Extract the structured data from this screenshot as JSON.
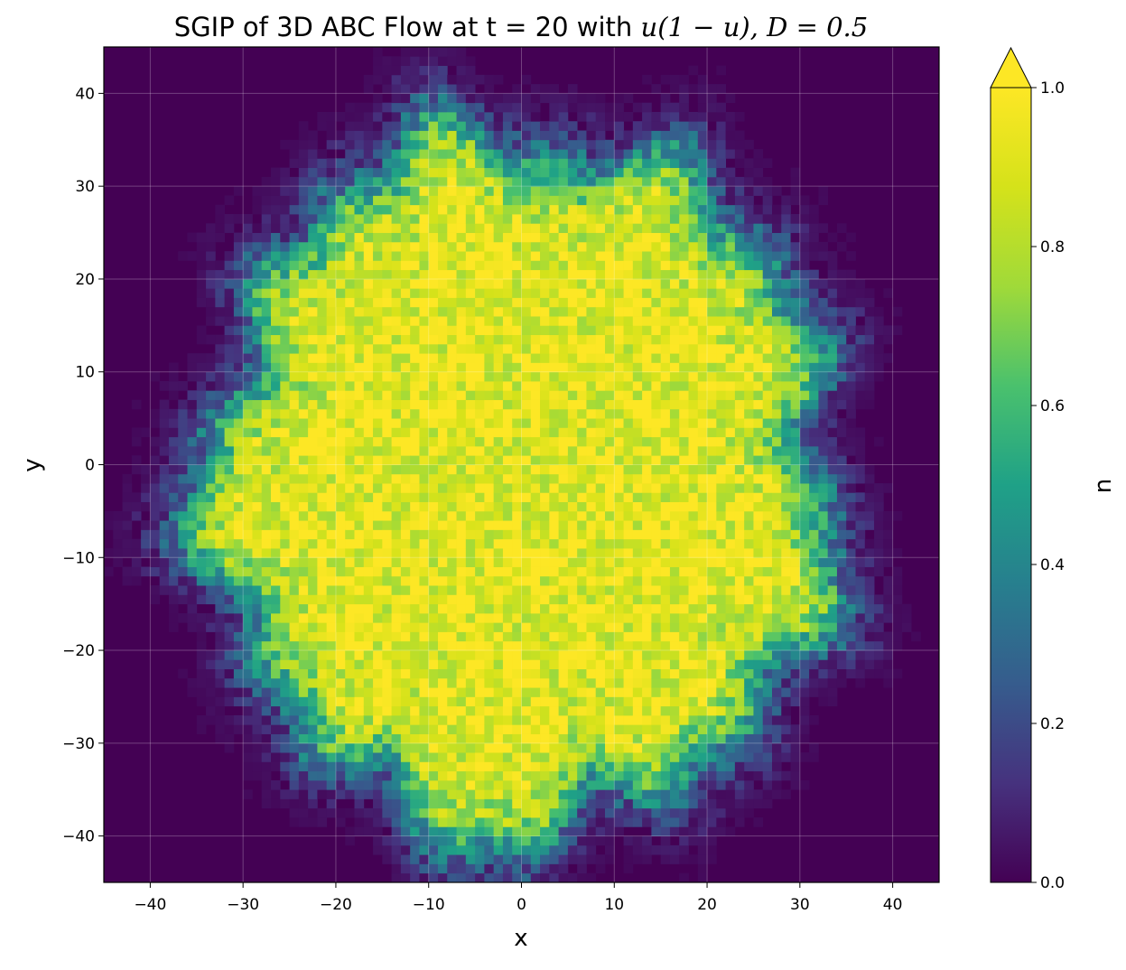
{
  "chart_data": {
    "type": "heatmap",
    "title_prefix": "SGIP of 3D ABC Flow at t = 20 with ",
    "title_math": "u(1 − u), D = 0.5",
    "xlabel": "x",
    "ylabel": "y",
    "xlim": [
      -45,
      45
    ],
    "ylim": [
      -45,
      45
    ],
    "x_ticks": [
      -40,
      -30,
      -20,
      -10,
      0,
      10,
      20,
      30,
      40
    ],
    "y_ticks": [
      -40,
      -30,
      -20,
      -10,
      0,
      10,
      20,
      30,
      40
    ],
    "x_tick_labels": [
      "−40",
      "−30",
      "−20",
      "−10",
      "0",
      "10",
      "20",
      "30",
      "40"
    ],
    "y_tick_labels": [
      "−40",
      "−30",
      "−20",
      "−10",
      "0",
      "10",
      "20",
      "30",
      "40"
    ],
    "grid": true,
    "colormap": "viridis",
    "colorbar": {
      "label": "u",
      "range": [
        0.0,
        1.0
      ],
      "ticks": [
        0.0,
        0.2,
        0.4,
        0.6,
        0.8,
        1.0
      ],
      "tick_labels": [
        "0.0",
        "0.2",
        "0.4",
        "0.6",
        "0.8",
        "1.0"
      ],
      "extend": "max"
    },
    "field": {
      "description_values": "noisy binned field of u over the domain",
      "center": [
        0,
        -2
      ],
      "radius_x": 33,
      "radius_y": 37,
      "inner_value": 0.92,
      "outer_value": 0.0,
      "front_width": 6,
      "angular_roughness": 3.5,
      "bins": 90
    }
  }
}
